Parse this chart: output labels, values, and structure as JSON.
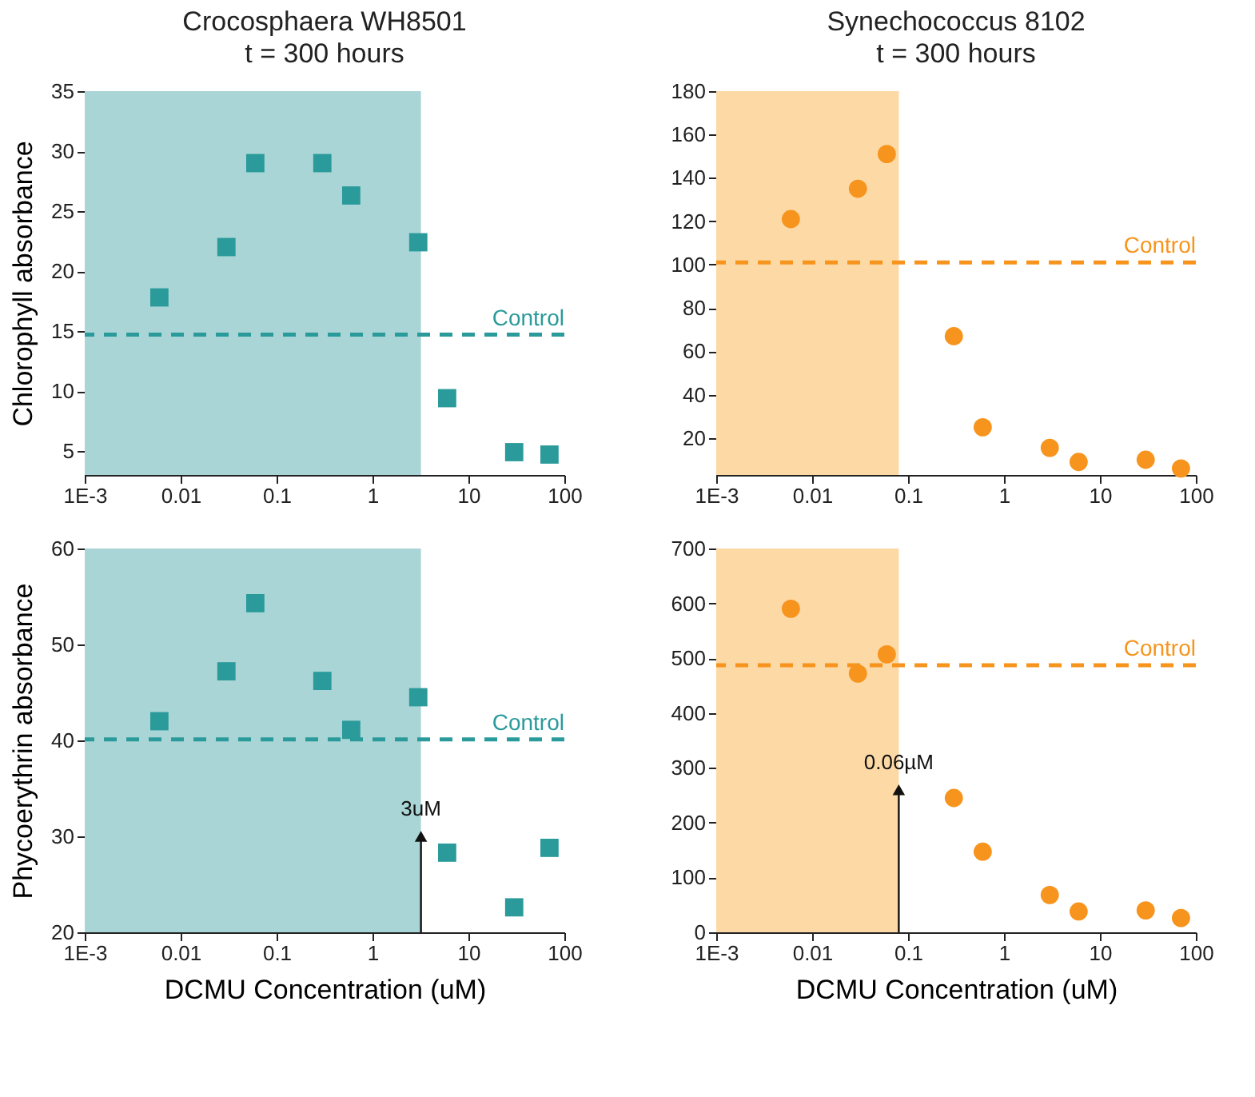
{
  "chart_data": [
    {
      "type": "scatter",
      "title": "Crocosphaera WH8501",
      "subtitle": "t = 300 hours",
      "ylabel": "Chlorophyll absorbance",
      "log": "x",
      "marker": "square",
      "grid": false,
      "x": [
        0.006,
        0.03,
        0.06,
        0.3,
        0.6,
        3,
        6,
        30,
        70
      ],
      "series": [
        {
          "color": "#2a9a9a",
          "values": [
            17.8,
            22,
            29,
            29,
            26.3,
            22.4,
            9.4,
            4.9,
            4.7
          ]
        }
      ],
      "xlim": [
        0.001,
        100
      ],
      "xticks": [
        {
          "value": 0.001,
          "label": "1E-3"
        },
        {
          "value": 0.01,
          "label": "0.01"
        },
        {
          "value": 0.1,
          "label": "0.1"
        },
        {
          "value": 1,
          "label": "1"
        },
        {
          "value": 10,
          "label": "10"
        },
        {
          "value": 100,
          "label": "100"
        }
      ],
      "ylim": [
        3,
        35
      ],
      "yticks": [
        5,
        10,
        15,
        20,
        25,
        30,
        35
      ],
      "ref_lines": [
        {
          "axis": "y",
          "value": 14.7,
          "label": "Control",
          "color": "#2a9a9a",
          "line_style": "dashed"
        }
      ],
      "bands": [
        {
          "axis": "x",
          "from": 0.001,
          "to": 3.2,
          "color": "#a9d5d6"
        }
      ]
    },
    {
      "type": "scatter",
      "title": "Synechococcus 8102",
      "subtitle": "t = 300 hours",
      "log": "x",
      "marker": "circle",
      "grid": false,
      "x": [
        0.006,
        0.03,
        0.06,
        0.3,
        0.6,
        3,
        6,
        30,
        70
      ],
      "series": [
        {
          "color": "#f7941d",
          "values": [
            121,
            135,
            151,
            67,
            25,
            15.5,
            9,
            10,
            6
          ]
        }
      ],
      "xlim": [
        0.001,
        100
      ],
      "xticks": [
        {
          "value": 0.001,
          "label": "1E-3"
        },
        {
          "value": 0.01,
          "label": "0.01"
        },
        {
          "value": 0.1,
          "label": "0.1"
        },
        {
          "value": 1,
          "label": "1"
        },
        {
          "value": 10,
          "label": "10"
        },
        {
          "value": 100,
          "label": "100"
        }
      ],
      "ylim": [
        3,
        180
      ],
      "yticks": [
        20,
        40,
        60,
        80,
        100,
        120,
        140,
        160,
        180
      ],
      "ref_lines": [
        {
          "axis": "y",
          "value": 101,
          "label": "Control",
          "color": "#f7941d",
          "line_style": "dashed"
        }
      ],
      "bands": [
        {
          "axis": "x",
          "from": 0.001,
          "to": 0.08,
          "color": "#fcd9a5"
        }
      ]
    },
    {
      "type": "scatter",
      "xlabel": "DCMU Concentration (uM)",
      "ylabel": "Phycoerythrin absorbance",
      "log": "x",
      "marker": "square",
      "grid": false,
      "x": [
        0.006,
        0.03,
        0.06,
        0.3,
        0.6,
        3,
        6,
        30,
        70
      ],
      "series": [
        {
          "color": "#2a9a9a",
          "values": [
            42,
            47.2,
            54.3,
            46.2,
            41.1,
            44.5,
            28.3,
            22.6,
            28.8
          ]
        }
      ],
      "xlim": [
        0.001,
        100
      ],
      "xticks": [
        {
          "value": 0.001,
          "label": "1E-3"
        },
        {
          "value": 0.01,
          "label": "0.01"
        },
        {
          "value": 0.1,
          "label": "0.1"
        },
        {
          "value": 1,
          "label": "1"
        },
        {
          "value": 10,
          "label": "10"
        },
        {
          "value": 100,
          "label": "100"
        }
      ],
      "ylim": [
        20,
        60
      ],
      "yticks": [
        20,
        30,
        40,
        50,
        60
      ],
      "ref_lines": [
        {
          "axis": "y",
          "value": 40.1,
          "label": "Control",
          "color": "#2a9a9a",
          "line_style": "dashed"
        }
      ],
      "bands": [
        {
          "axis": "x",
          "from": 0.001,
          "to": 3.2,
          "color": "#a9d5d6"
        }
      ],
      "annotations": [
        {
          "text": "3uM",
          "x": 3.2,
          "y": 30
        }
      ]
    },
    {
      "type": "scatter",
      "xlabel": "DCMU Concentration (uM)",
      "log": "x",
      "marker": "circle",
      "grid": false,
      "x": [
        0.006,
        0.03,
        0.06,
        0.3,
        0.6,
        3,
        6,
        30,
        70
      ],
      "series": [
        {
          "color": "#f7941d",
          "values": [
            590,
            472,
            507,
            245,
            147,
            68,
            38,
            40,
            26
          ]
        }
      ],
      "xlim": [
        0.001,
        100
      ],
      "xticks": [
        {
          "value": 0.001,
          "label": "1E-3"
        },
        {
          "value": 0.01,
          "label": "0.01"
        },
        {
          "value": 0.1,
          "label": "0.1"
        },
        {
          "value": 1,
          "label": "1"
        },
        {
          "value": 10,
          "label": "10"
        },
        {
          "value": 100,
          "label": "100"
        }
      ],
      "ylim": [
        0,
        700
      ],
      "yticks": [
        0,
        100,
        200,
        300,
        400,
        500,
        600,
        700
      ],
      "ref_lines": [
        {
          "axis": "y",
          "value": 487,
          "label": "Control",
          "color": "#f7941d",
          "line_style": "dashed"
        }
      ],
      "bands": [
        {
          "axis": "x",
          "from": 0.001,
          "to": 0.08,
          "color": "#fcd9a5"
        }
      ],
      "annotations": [
        {
          "text": "0.06µM",
          "x": 0.08,
          "y": 260
        }
      ]
    }
  ]
}
